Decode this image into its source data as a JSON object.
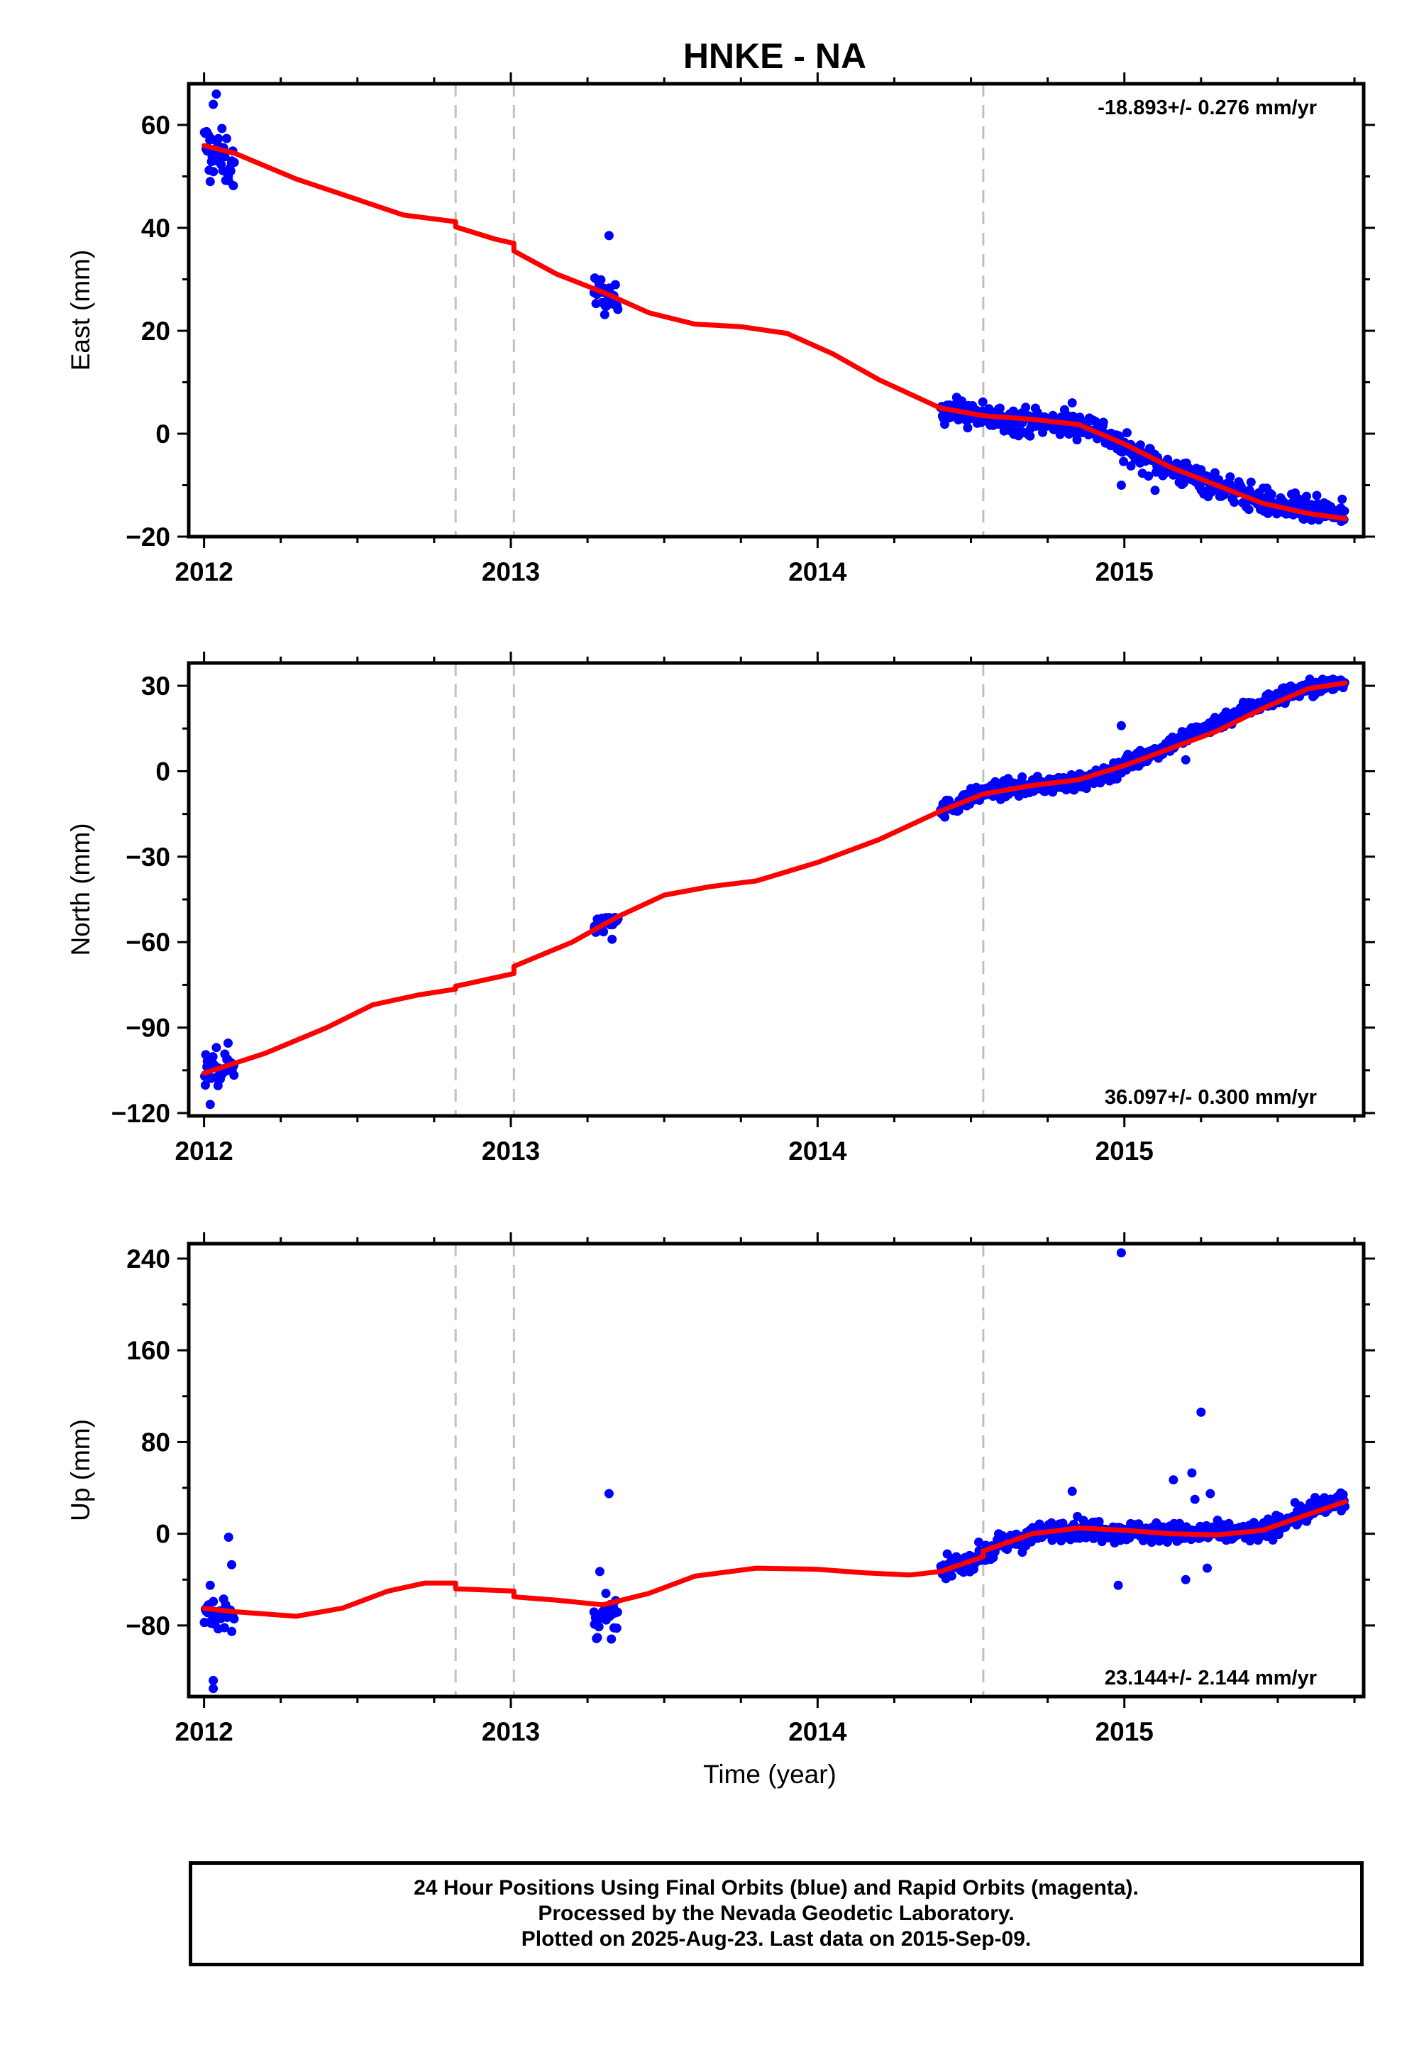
{
  "title": "HNKE - NA",
  "colors": {
    "data": "#0000ff",
    "model": "#ff0000",
    "epoch_lines": "#c0c0c0",
    "frame": "#000000"
  },
  "chart_data": [
    {
      "type": "scatter",
      "ylabel": "East (mm)",
      "xlabel": "",
      "xlim": [
        2011.95,
        2015.78
      ],
      "ylim": [
        -20,
        68
      ],
      "xticks": [
        2012,
        2013,
        2014,
        2015
      ],
      "yticks": [
        -20,
        0,
        20,
        40,
        60
      ],
      "ytick_labels": [
        "−20",
        "0",
        "20",
        "40",
        "60"
      ],
      "grid": false,
      "rate_text": "-18.893+/- 0.276 mm/yr",
      "rate_position": "top-right",
      "epoch_lines": [
        2012.82,
        2013.01,
        2014.54
      ],
      "series": [
        {
          "kind": "points",
          "clusters": [
            {
              "x0": 2012.0,
              "x1": 2012.1,
              "n": 40,
              "y_start": 56,
              "y_end": 52,
              "spread": 2.5
            },
            {
              "x0": 2013.27,
              "x1": 2013.35,
              "n": 28,
              "y_start": 28,
              "y_end": 25,
              "spread": 1.6
            },
            {
              "x0": 2014.4,
              "x1": 2015.72,
              "n": 480,
              "anchors": [
                [
                  2014.4,
                  5
                ],
                [
                  2014.55,
                  3
                ],
                [
                  2014.9,
                  1.5
                ],
                [
                  2015.0,
                  -3
                ],
                [
                  2015.2,
                  -8
                ],
                [
                  2015.5,
                  -14
                ],
                [
                  2015.72,
                  -16
                ]
              ],
              "spread": 1.3
            }
          ],
          "outliers": [
            [
              2012.04,
              66
            ],
            [
              2012.03,
              64
            ],
            [
              2012.02,
              49
            ],
            [
              2013.32,
              38.5
            ],
            [
              2014.83,
              6
            ],
            [
              2014.99,
              -10
            ],
            [
              2015.1,
              -11
            ],
            [
              2015.25,
              -7
            ]
          ]
        },
        {
          "kind": "model",
          "points": [
            [
              2012.0,
              56
            ],
            [
              2012.1,
              54.5
            ],
            [
              2012.3,
              49.5
            ],
            [
              2012.5,
              45.5
            ],
            [
              2012.65,
              42.5
            ],
            [
              2012.82,
              41.2
            ],
            [
              2012.82,
              40.2
            ],
            [
              2012.95,
              37.8
            ],
            [
              2013.01,
              37
            ],
            [
              2013.01,
              35.5
            ],
            [
              2013.15,
              31
            ],
            [
              2013.3,
              27.5
            ],
            [
              2013.45,
              23.5
            ],
            [
              2013.6,
              21.3
            ],
            [
              2013.75,
              20.8
            ],
            [
              2013.9,
              19.5
            ],
            [
              2014.05,
              15.5
            ],
            [
              2014.2,
              10.5
            ],
            [
              2014.4,
              5
            ],
            [
              2014.54,
              3.5
            ],
            [
              2014.7,
              2.8
            ],
            [
              2014.85,
              1.8
            ],
            [
              2015.0,
              -2
            ],
            [
              2015.15,
              -6.5
            ],
            [
              2015.3,
              -10
            ],
            [
              2015.45,
              -13.5
            ],
            [
              2015.6,
              -15.5
            ],
            [
              2015.72,
              -16.5
            ]
          ]
        }
      ]
    },
    {
      "type": "scatter",
      "ylabel": "North (mm)",
      "xlabel": "",
      "xlim": [
        2011.95,
        2015.78
      ],
      "ylim": [
        -121,
        38
      ],
      "xticks": [
        2012,
        2013,
        2014,
        2015
      ],
      "yticks": [
        -120,
        -90,
        -60,
        -30,
        0,
        30
      ],
      "ytick_labels": [
        "−120",
        "−90",
        "−60",
        "−30",
        "0",
        "30"
      ],
      "grid": false,
      "rate_text": "36.097+/- 0.300 mm/yr",
      "rate_position": "bottom-right",
      "epoch_lines": [
        2012.82,
        2013.01,
        2014.54
      ],
      "series": [
        {
          "kind": "points",
          "clusters": [
            {
              "x0": 2012.0,
              "x1": 2012.1,
              "n": 40,
              "y_start": -106,
              "y_end": -102,
              "spread": 3
            },
            {
              "x0": 2013.27,
              "x1": 2013.35,
              "n": 28,
              "y_start": -55,
              "y_end": -50,
              "spread": 1.8
            },
            {
              "x0": 2014.4,
              "x1": 2015.72,
              "n": 480,
              "anchors": [
                [
                  2014.4,
                  -14
                ],
                [
                  2014.55,
                  -7
                ],
                [
                  2014.9,
                  -3
                ],
                [
                  2015.0,
                  2
                ],
                [
                  2015.2,
                  12
                ],
                [
                  2015.4,
                  22
                ],
                [
                  2015.55,
                  28
                ],
                [
                  2015.72,
                  31
                ]
              ],
              "spread": 1.5
            }
          ],
          "outliers": [
            [
              2012.02,
              -117
            ],
            [
              2012.04,
              -97
            ],
            [
              2013.33,
              -59
            ],
            [
              2014.99,
              16
            ],
            [
              2015.2,
              4
            ]
          ]
        },
        {
          "kind": "model",
          "points": [
            [
              2012.0,
              -106
            ],
            [
              2012.2,
              -99
            ],
            [
              2012.4,
              -90
            ],
            [
              2012.55,
              -82
            ],
            [
              2012.7,
              -78.5
            ],
            [
              2012.82,
              -76.5
            ],
            [
              2012.82,
              -75.5
            ],
            [
              2013.01,
              -71
            ],
            [
              2013.01,
              -68.5
            ],
            [
              2013.2,
              -60
            ],
            [
              2013.35,
              -51
            ],
            [
              2013.5,
              -43.5
            ],
            [
              2013.65,
              -40.5
            ],
            [
              2013.8,
              -38.5
            ],
            [
              2014.0,
              -32
            ],
            [
              2014.2,
              -24
            ],
            [
              2014.4,
              -14
            ],
            [
              2014.54,
              -8
            ],
            [
              2014.7,
              -5
            ],
            [
              2014.85,
              -3
            ],
            [
              2015.0,
              2
            ],
            [
              2015.15,
              8
            ],
            [
              2015.3,
              14
            ],
            [
              2015.45,
              22
            ],
            [
              2015.6,
              29
            ],
            [
              2015.72,
              31
            ]
          ]
        }
      ]
    },
    {
      "type": "scatter",
      "ylabel": "Up (mm)",
      "xlabel": "Time (year)",
      "xlim": [
        2011.95,
        2015.78
      ],
      "ylim": [
        -142,
        253
      ],
      "xticks": [
        2012,
        2013,
        2014,
        2015
      ],
      "yticks": [
        -80,
        0,
        80,
        160,
        240
      ],
      "ytick_labels": [
        "−80",
        "0",
        "80",
        "160",
        "240"
      ],
      "grid": false,
      "rate_text": "23.144+/- 2.144 mm/yr",
      "rate_position": "bottom-right",
      "epoch_lines": [
        2012.82,
        2013.01,
        2014.54
      ],
      "series": [
        {
          "kind": "points",
          "clusters": [
            {
              "x0": 2012.0,
              "x1": 2012.1,
              "n": 35,
              "y_start": -65,
              "y_end": -75,
              "spread": 7
            },
            {
              "x0": 2013.27,
              "x1": 2013.35,
              "n": 28,
              "y_start": -78,
              "y_end": -72,
              "spread": 7
            },
            {
              "x0": 2014.4,
              "x1": 2015.72,
              "n": 480,
              "anchors": [
                [
                  2014.4,
                  -33
                ],
                [
                  2014.54,
                  -18
                ],
                [
                  2014.6,
                  -10
                ],
                [
                  2014.8,
                  5
                ],
                [
                  2015.0,
                  2
                ],
                [
                  2015.2,
                  0
                ],
                [
                  2015.45,
                  2
                ],
                [
                  2015.6,
                  20
                ],
                [
                  2015.72,
                  30
                ]
              ],
              "spread": 4.5
            }
          ],
          "outliers": [
            [
              2012.03,
              -128
            ],
            [
              2012.03,
              -135
            ],
            [
              2012.08,
              -3
            ],
            [
              2012.09,
              -27
            ],
            [
              2012.02,
              -45
            ],
            [
              2013.32,
              35
            ],
            [
              2013.29,
              -33
            ],
            [
              2013.31,
              -52
            ],
            [
              2014.99,
              245
            ],
            [
              2015.25,
              106
            ],
            [
              2015.22,
              53
            ],
            [
              2015.16,
              47
            ],
            [
              2015.23,
              30
            ],
            [
              2015.28,
              35
            ],
            [
              2014.98,
              -45
            ],
            [
              2015.2,
              -40
            ],
            [
              2015.27,
              -30
            ],
            [
              2014.83,
              37
            ]
          ]
        },
        {
          "kind": "model",
          "points": [
            [
              2012.0,
              -65
            ],
            [
              2012.1,
              -68
            ],
            [
              2012.3,
              -72
            ],
            [
              2012.45,
              -65
            ],
            [
              2012.6,
              -50
            ],
            [
              2012.72,
              -43
            ],
            [
              2012.82,
              -43
            ],
            [
              2012.82,
              -48
            ],
            [
              2013.01,
              -50
            ],
            [
              2013.01,
              -55
            ],
            [
              2013.15,
              -58
            ],
            [
              2013.3,
              -62
            ],
            [
              2013.45,
              -52
            ],
            [
              2013.6,
              -37
            ],
            [
              2013.8,
              -30
            ],
            [
              2014.0,
              -31
            ],
            [
              2014.15,
              -34
            ],
            [
              2014.3,
              -36
            ],
            [
              2014.4,
              -33
            ],
            [
              2014.54,
              -20
            ],
            [
              2014.54,
              -15
            ],
            [
              2014.7,
              0
            ],
            [
              2014.85,
              5
            ],
            [
              2015.0,
              3
            ],
            [
              2015.15,
              0
            ],
            [
              2015.3,
              -1
            ],
            [
              2015.45,
              3
            ],
            [
              2015.6,
              17
            ],
            [
              2015.72,
              28
            ]
          ]
        }
      ]
    }
  ],
  "footer": {
    "line1": "24 Hour Positions Using Final Orbits (blue) and Rapid Orbits (magenta).",
    "line2": "Processed by the Nevada Geodetic Laboratory.",
    "line3": "Plotted on 2025-Aug-23. Last data on 2015-Sep-09."
  }
}
